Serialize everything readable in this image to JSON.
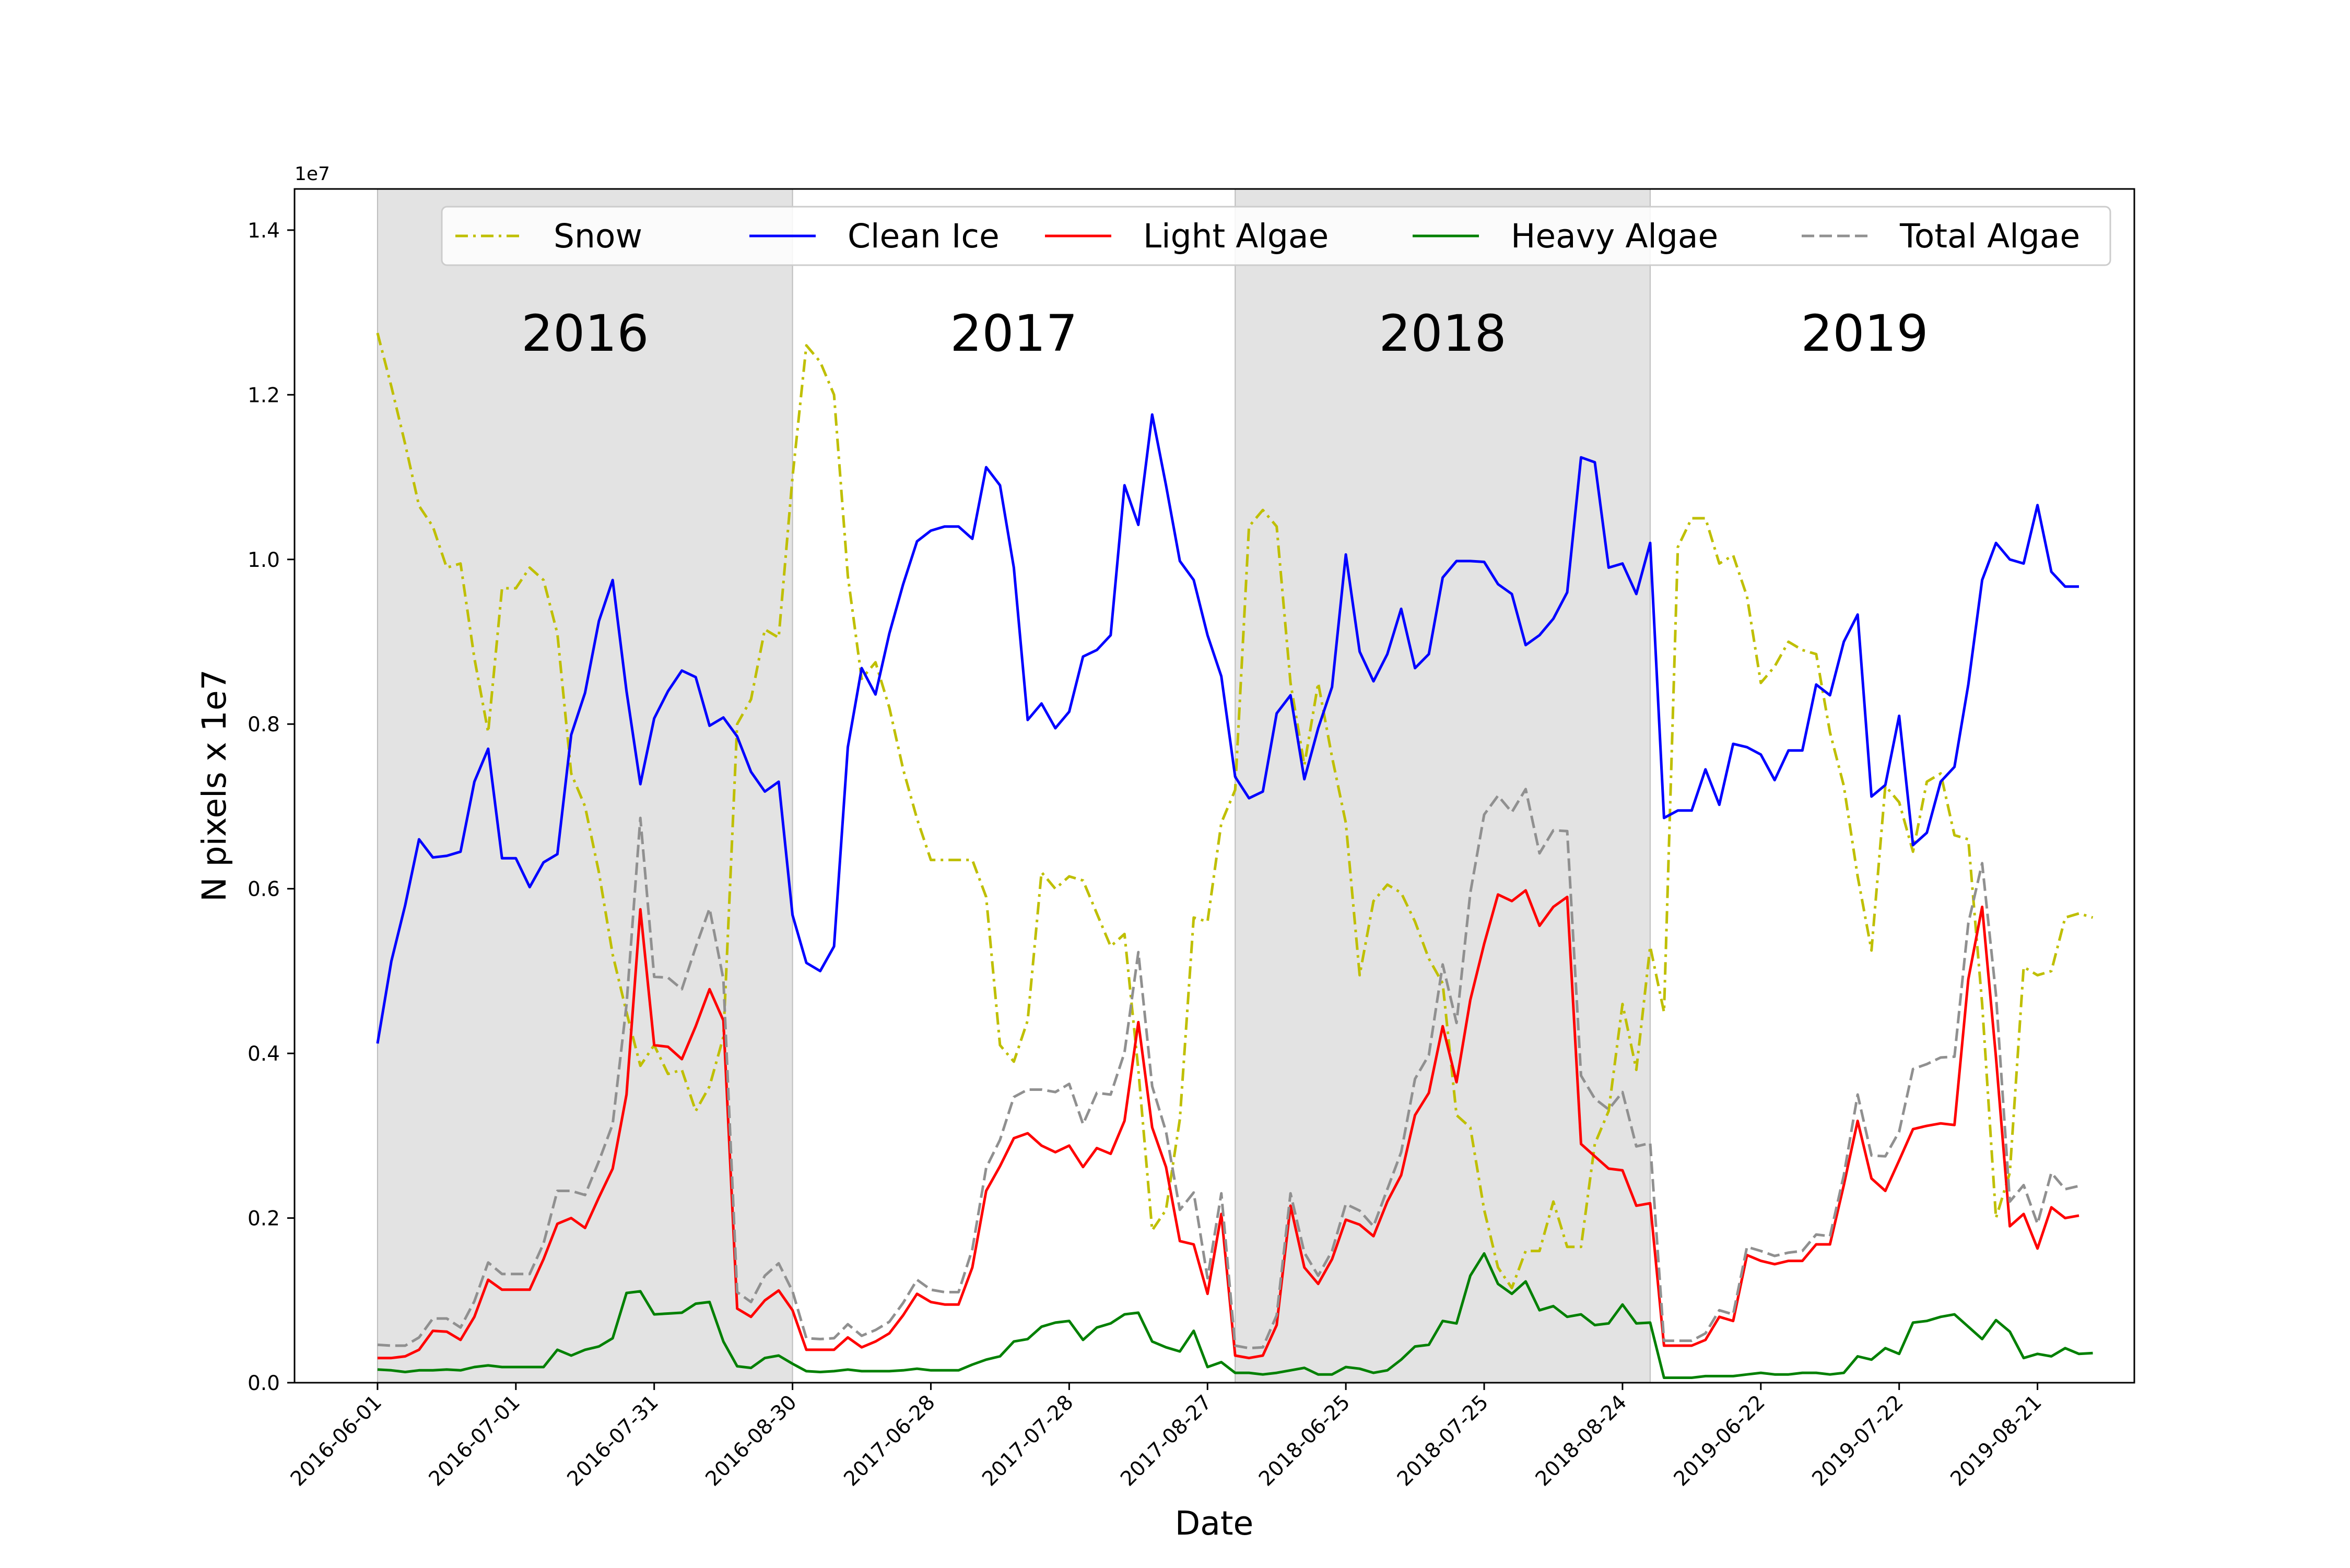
{
  "chart_data": {
    "type": "line",
    "title": "",
    "xlabel": "Date",
    "ylabel": "N pixels x 1e7",
    "y_multiplier_label": "1e7",
    "y_units": "N pixels (×1e7)",
    "ylim": [
      0,
      1.45
    ],
    "yticks": [
      0.0,
      0.2,
      0.4,
      0.6,
      0.8,
      1.0,
      1.2,
      1.4
    ],
    "ytick_labels": [
      "0.0",
      "0.2",
      "0.4",
      "0.6",
      "0.8",
      "1.0",
      "1.2",
      "1.4"
    ],
    "x_index_range": [
      -6,
      127
    ],
    "xticks": [
      {
        "index": 0,
        "label": "2016-06-01"
      },
      {
        "index": 10,
        "label": "2016-07-01"
      },
      {
        "index": 20,
        "label": "2016-07-31"
      },
      {
        "index": 30,
        "label": "2016-08-30"
      },
      {
        "index": 40,
        "label": "2017-06-28"
      },
      {
        "index": 50,
        "label": "2017-07-28"
      },
      {
        "index": 60,
        "label": "2017-08-27"
      },
      {
        "index": 70,
        "label": "2018-06-25"
      },
      {
        "index": 80,
        "label": "2018-07-25"
      },
      {
        "index": 90,
        "label": "2018-08-24"
      },
      {
        "index": 100,
        "label": "2019-06-22"
      },
      {
        "index": 110,
        "label": "2019-07-22"
      },
      {
        "index": 120,
        "label": "2019-08-21"
      }
    ],
    "years": [
      {
        "label": "2016",
        "start": 0,
        "end": 30,
        "shaded": true
      },
      {
        "label": "2017",
        "start": 30,
        "end": 62,
        "shaded": false
      },
      {
        "label": "2018",
        "start": 62,
        "end": 92,
        "shaded": true
      },
      {
        "label": "2019",
        "start": 92,
        "end": 123,
        "shaded": false
      }
    ],
    "grid": false,
    "legend_position": "top",
    "series": [
      {
        "name": "Snow",
        "color": "#bfbf00",
        "dash": "dashdot",
        "values": [
          1.275,
          1.21,
          1.14,
          1.065,
          1.04,
          0.99,
          0.995,
          0.88,
          0.79,
          0.965,
          0.965,
          0.99,
          0.975,
          0.91,
          0.74,
          0.7,
          0.62,
          0.52,
          0.45,
          0.385,
          0.41,
          0.375,
          0.38,
          0.33,
          0.36,
          0.42,
          0.8,
          0.83,
          0.915,
          0.905,
          1.1,
          1.26,
          1.24,
          1.2,
          0.98,
          0.855,
          0.875,
          0.82,
          0.745,
          0.685,
          0.635,
          0.635,
          0.635,
          0.635,
          0.59,
          0.41,
          0.39,
          0.44,
          0.62,
          0.6,
          0.615,
          0.61,
          0.57,
          0.53,
          0.545,
          0.38,
          0.185,
          0.21,
          0.32,
          0.565,
          0.56,
          0.68,
          0.72,
          1.04,
          1.06,
          1.04,
          0.85,
          0.75,
          0.85,
          0.76,
          0.68,
          0.495,
          0.585,
          0.605,
          0.595,
          0.56,
          0.515,
          0.485,
          0.325,
          0.31,
          0.21,
          0.14,
          0.115,
          0.16,
          0.16,
          0.22,
          0.165,
          0.165,
          0.29,
          0.33,
          0.46,
          0.38,
          0.53,
          0.45,
          1.015,
          1.05,
          1.05,
          0.995,
          1.005,
          0.955,
          0.85,
          0.87,
          0.9,
          0.89,
          0.885,
          0.79,
          0.725,
          0.615,
          0.525,
          0.725,
          0.705,
          0.645,
          0.73,
          0.74,
          0.665,
          0.66,
          0.46,
          0.2,
          0.255,
          0.505,
          0.495,
          0.5,
          0.565,
          0.57,
          0.565
        ]
      },
      {
        "name": "Clean Ice",
        "color": "#0000ff",
        "dash": "solid",
        "values": [
          0.412,
          0.512,
          0.58,
          0.66,
          0.638,
          0.64,
          0.645,
          0.73,
          0.77,
          0.637,
          0.637,
          0.602,
          0.632,
          0.642,
          0.787,
          0.838,
          0.925,
          0.975,
          0.84,
          0.727,
          0.807,
          0.84,
          0.865,
          0.857,
          0.798,
          0.808,
          0.785,
          0.742,
          0.718,
          0.73,
          0.568,
          0.51,
          0.5,
          0.53,
          0.772,
          0.868,
          0.836,
          0.91,
          0.97,
          1.022,
          1.035,
          1.04,
          1.04,
          1.025,
          1.112,
          1.09,
          0.99,
          0.805,
          0.825,
          0.795,
          0.815,
          0.882,
          0.89,
          0.908,
          1.09,
          1.042,
          1.176,
          1.09,
          0.998,
          0.975,
          0.908,
          0.858,
          0.736,
          0.71,
          0.718,
          0.813,
          0.835,
          0.733,
          0.795,
          0.845,
          1.006,
          0.888,
          0.852,
          0.885,
          0.94,
          0.868,
          0.885,
          0.978,
          0.998,
          0.998,
          0.997,
          0.97,
          0.958,
          0.896,
          0.908,
          0.928,
          0.96,
          1.124,
          1.118,
          0.99,
          0.995,
          0.958,
          1.02,
          0.686,
          0.695,
          0.695,
          0.745,
          0.702,
          0.776,
          0.772,
          0.763,
          0.732,
          0.768,
          0.768,
          0.848,
          0.835,
          0.9,
          0.933,
          0.712,
          0.726,
          0.81,
          0.653,
          0.668,
          0.73,
          0.748,
          0.848,
          0.975,
          1.02,
          1.0,
          0.995,
          1.066,
          0.985,
          0.967,
          0.967
        ]
      },
      {
        "name": "Light Algae",
        "color": "#ff0000",
        "dash": "solid",
        "values": [
          0.03,
          0.03,
          0.032,
          0.04,
          0.063,
          0.062,
          0.052,
          0.08,
          0.125,
          0.113,
          0.113,
          0.113,
          0.15,
          0.193,
          0.2,
          0.188,
          0.225,
          0.26,
          0.35,
          0.575,
          0.41,
          0.408,
          0.393,
          0.433,
          0.478,
          0.44,
          0.09,
          0.08,
          0.1,
          0.112,
          0.088,
          0.04,
          0.04,
          0.04,
          0.055,
          0.043,
          0.05,
          0.06,
          0.082,
          0.108,
          0.098,
          0.095,
          0.095,
          0.14,
          0.233,
          0.263,
          0.297,
          0.303,
          0.288,
          0.28,
          0.288,
          0.262,
          0.285,
          0.278,
          0.318,
          0.438,
          0.31,
          0.262,
          0.172,
          0.168,
          0.108,
          0.205,
          0.033,
          0.03,
          0.033,
          0.07,
          0.215,
          0.14,
          0.12,
          0.15,
          0.198,
          0.192,
          0.178,
          0.22,
          0.252,
          0.325,
          0.352,
          0.433,
          0.365,
          0.465,
          0.533,
          0.593,
          0.585,
          0.598,
          0.555,
          0.578,
          0.59,
          0.29,
          0.275,
          0.26,
          0.258,
          0.215,
          0.218,
          0.045,
          0.045,
          0.045,
          0.052,
          0.08,
          0.075,
          0.155,
          0.148,
          0.144,
          0.148,
          0.148,
          0.168,
          0.168,
          0.24,
          0.318,
          0.248,
          0.233,
          0.27,
          0.308,
          0.312,
          0.315,
          0.313,
          0.49,
          0.578,
          0.395,
          0.19,
          0.205,
          0.163,
          0.213,
          0.2,
          0.203
        ]
      },
      {
        "name": "Heavy Algae",
        "color": "#008000",
        "dash": "solid",
        "values": [
          0.016,
          0.015,
          0.013,
          0.015,
          0.015,
          0.016,
          0.015,
          0.019,
          0.021,
          0.019,
          0.019,
          0.019,
          0.019,
          0.04,
          0.033,
          0.04,
          0.044,
          0.054,
          0.109,
          0.111,
          0.083,
          0.084,
          0.085,
          0.096,
          0.098,
          0.05,
          0.02,
          0.018,
          0.03,
          0.033,
          0.023,
          0.014,
          0.013,
          0.014,
          0.016,
          0.014,
          0.014,
          0.014,
          0.015,
          0.017,
          0.015,
          0.015,
          0.015,
          0.022,
          0.028,
          0.032,
          0.05,
          0.053,
          0.068,
          0.073,
          0.075,
          0.052,
          0.067,
          0.072,
          0.083,
          0.085,
          0.05,
          0.043,
          0.038,
          0.063,
          0.019,
          0.025,
          0.012,
          0.012,
          0.01,
          0.012,
          0.015,
          0.018,
          0.01,
          0.01,
          0.019,
          0.017,
          0.012,
          0.015,
          0.028,
          0.044,
          0.046,
          0.075,
          0.072,
          0.13,
          0.157,
          0.12,
          0.108,
          0.123,
          0.088,
          0.093,
          0.08,
          0.083,
          0.07,
          0.072,
          0.095,
          0.072,
          0.073,
          0.006,
          0.006,
          0.006,
          0.008,
          0.008,
          0.008,
          0.01,
          0.012,
          0.01,
          0.01,
          0.012,
          0.012,
          0.01,
          0.012,
          0.032,
          0.028,
          0.042,
          0.035,
          0.073,
          0.075,
          0.08,
          0.083,
          0.068,
          0.053,
          0.076,
          0.062,
          0.03,
          0.035,
          0.032,
          0.042,
          0.035,
          0.036
        ]
      },
      {
        "name": "Total Algae",
        "color": "#909090",
        "dash": "dashed",
        "values": [
          0.046,
          0.045,
          0.045,
          0.055,
          0.078,
          0.078,
          0.067,
          0.099,
          0.146,
          0.132,
          0.132,
          0.132,
          0.169,
          0.233,
          0.233,
          0.228,
          0.269,
          0.314,
          0.459,
          0.686,
          0.493,
          0.492,
          0.478,
          0.529,
          0.576,
          0.49,
          0.11,
          0.098,
          0.13,
          0.145,
          0.111,
          0.054,
          0.053,
          0.054,
          0.071,
          0.057,
          0.064,
          0.074,
          0.097,
          0.125,
          0.113,
          0.11,
          0.11,
          0.162,
          0.261,
          0.295,
          0.347,
          0.356,
          0.356,
          0.353,
          0.363,
          0.314,
          0.352,
          0.35,
          0.401,
          0.523,
          0.36,
          0.305,
          0.21,
          0.231,
          0.127,
          0.23,
          0.045,
          0.042,
          0.043,
          0.082,
          0.23,
          0.158,
          0.13,
          0.16,
          0.217,
          0.209,
          0.19,
          0.235,
          0.28,
          0.369,
          0.398,
          0.508,
          0.437,
          0.595,
          0.69,
          0.713,
          0.693,
          0.721,
          0.643,
          0.671,
          0.67,
          0.373,
          0.345,
          0.332,
          0.353,
          0.287,
          0.291,
          0.051,
          0.051,
          0.051,
          0.06,
          0.088,
          0.083,
          0.165,
          0.16,
          0.154,
          0.158,
          0.16,
          0.18,
          0.178,
          0.252,
          0.35,
          0.276,
          0.275,
          0.305,
          0.381,
          0.387,
          0.395,
          0.396,
          0.558,
          0.631,
          0.471,
          0.22,
          0.24,
          0.193,
          0.255,
          0.235,
          0.239
        ]
      }
    ]
  }
}
